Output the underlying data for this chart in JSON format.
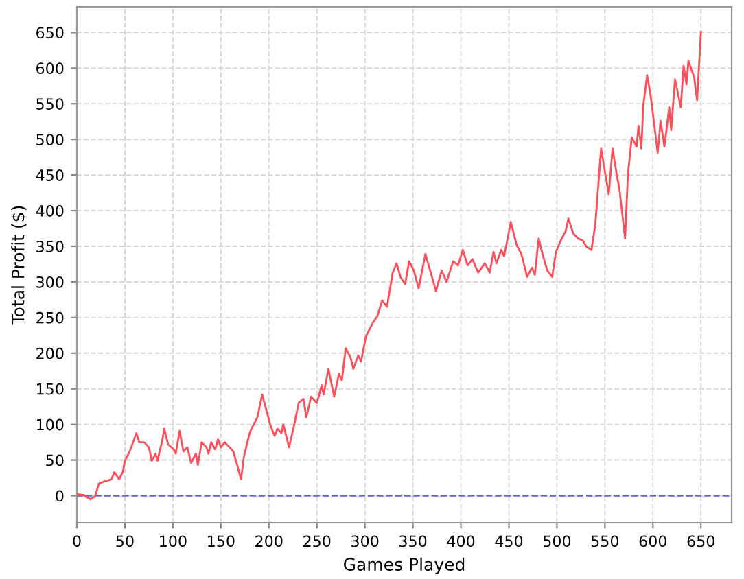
{
  "chart_data": {
    "type": "line",
    "xlabel": "Games Played",
    "ylabel": "Total Profit ($)",
    "xlim": [
      0,
      682
    ],
    "xticks": [
      0,
      50,
      100,
      150,
      200,
      250,
      300,
      350,
      400,
      450,
      500,
      550,
      600,
      650
    ],
    "ylim": [
      -38,
      686
    ],
    "yticks": [
      0,
      50,
      100,
      150,
      200,
      250,
      300,
      350,
      400,
      450,
      500,
      550,
      600,
      650
    ],
    "grid": true,
    "legend": false,
    "marker": "none",
    "line_style": "solid",
    "ref_lines": [
      {
        "axis": "y",
        "value": 0,
        "color": "#6666cc",
        "line_style": "dashed"
      }
    ],
    "series": [
      {
        "color": "#ff4d5a",
        "x": [
          0,
          7,
          14,
          19,
          23,
          29,
          36,
          39,
          44,
          48,
          50,
          55,
          62,
          65,
          70,
          75,
          78,
          82,
          84,
          89,
          91,
          95,
          101,
          103,
          107,
          111,
          115,
          119,
          124,
          126,
          130,
          135,
          137,
          140,
          144,
          147,
          150,
          154,
          159,
          163,
          171,
          174,
          180,
          183,
          188,
          193,
          202,
          206,
          209,
          213,
          215,
          221,
          226,
          231,
          236,
          239,
          244,
          250,
          255,
          257,
          262,
          268,
          273,
          276,
          280,
          285,
          288,
          293,
          296,
          301,
          308,
          313,
          318,
          323,
          329,
          333,
          337,
          342,
          346,
          351,
          356,
          363,
          368,
          374,
          380,
          385,
          392,
          397,
          402,
          407,
          412,
          418,
          425,
          430,
          434,
          437,
          442,
          445,
          452,
          458,
          463,
          469,
          474,
          477,
          481,
          485,
          490,
          495,
          499,
          504,
          509,
          512,
          517,
          522,
          527,
          531,
          536,
          540,
          546,
          552,
          554,
          558,
          563,
          565,
          571,
          574,
          578,
          583,
          585,
          588,
          590,
          594,
          598,
          605,
          608,
          612,
          617,
          619,
          623,
          626,
          629,
          632,
          635,
          637,
          643,
          646,
          650
        ],
        "values": [
          2,
          1,
          -5,
          -1,
          17,
          20,
          23,
          33,
          23,
          34,
          49,
          62,
          88,
          75,
          75,
          68,
          49,
          59,
          49,
          78,
          94,
          72,
          65,
          59,
          91,
          62,
          68,
          46,
          59,
          43,
          75,
          68,
          59,
          75,
          65,
          79,
          68,
          75,
          68,
          62,
          23,
          55,
          88,
          97,
          110,
          142,
          97,
          84,
          94,
          88,
          100,
          68,
          97,
          130,
          136,
          110,
          139,
          130,
          155,
          142,
          178,
          139,
          171,
          162,
          207,
          194,
          178,
          197,
          188,
          223,
          242,
          252,
          274,
          265,
          313,
          326,
          307,
          297,
          329,
          316,
          291,
          339,
          316,
          287,
          316,
          300,
          329,
          323,
          345,
          323,
          332,
          313,
          326,
          313,
          342,
          326,
          345,
          336,
          384,
          352,
          339,
          307,
          320,
          310,
          361,
          339,
          316,
          307,
          342,
          358,
          371,
          389,
          368,
          361,
          358,
          349,
          345,
          381,
          487,
          439,
          423,
          487,
          445,
          432,
          361,
          452,
          503,
          490,
          519,
          487,
          548,
          590,
          558,
          481,
          526,
          490,
          545,
          513,
          584,
          565,
          545,
          603,
          577,
          610,
          587,
          555,
          651
        ]
      }
    ]
  }
}
